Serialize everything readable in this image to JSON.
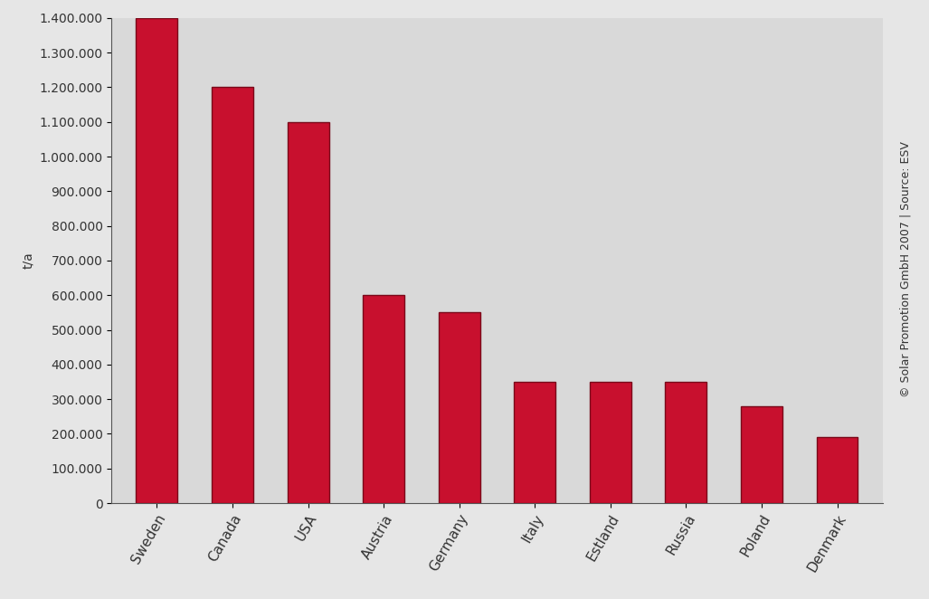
{
  "chart_data": {
    "type": "bar",
    "y_label": "t/a",
    "source": "© Solar Promotion GmbH 2007 | Source: ESV",
    "categories": [
      "Sweden",
      "Canada",
      "USA",
      "Austria",
      "Germany",
      "Italy",
      "Estland",
      "Russia",
      "Poland",
      "Denmark"
    ],
    "values": [
      1400000,
      1200000,
      1100000,
      600000,
      550000,
      350000,
      350000,
      350000,
      280000,
      190000
    ],
    "color": "#c8102e",
    "ylim": [
      0,
      1400000
    ],
    "yticks": [
      0,
      {
        "value": 100000,
        "label": "100.000"
      },
      {
        "value": 200000,
        "label": "200.000"
      },
      {
        "value": 300000,
        "label": "300.000"
      },
      {
        "value": 400000,
        "label": "400.000"
      },
      {
        "value": 500000,
        "label": "500.000"
      },
      {
        "value": 600000,
        "label": "600.000"
      },
      {
        "value": 700000,
        "label": "700.000"
      },
      {
        "value": 800000,
        "label": "800.000"
      },
      {
        "value": 900000,
        "label": "900.000"
      },
      {
        "value": 1000000,
        "label": "1.000.000"
      },
      {
        "value": 1100000,
        "label": "1.100.000"
      },
      {
        "value": 1200000,
        "label": "1.200.000"
      },
      {
        "value": 1300000,
        "label": "1.300.000"
      },
      {
        "value": 1400000,
        "label": "1.400.000"
      }
    ],
    "grid": false
  }
}
